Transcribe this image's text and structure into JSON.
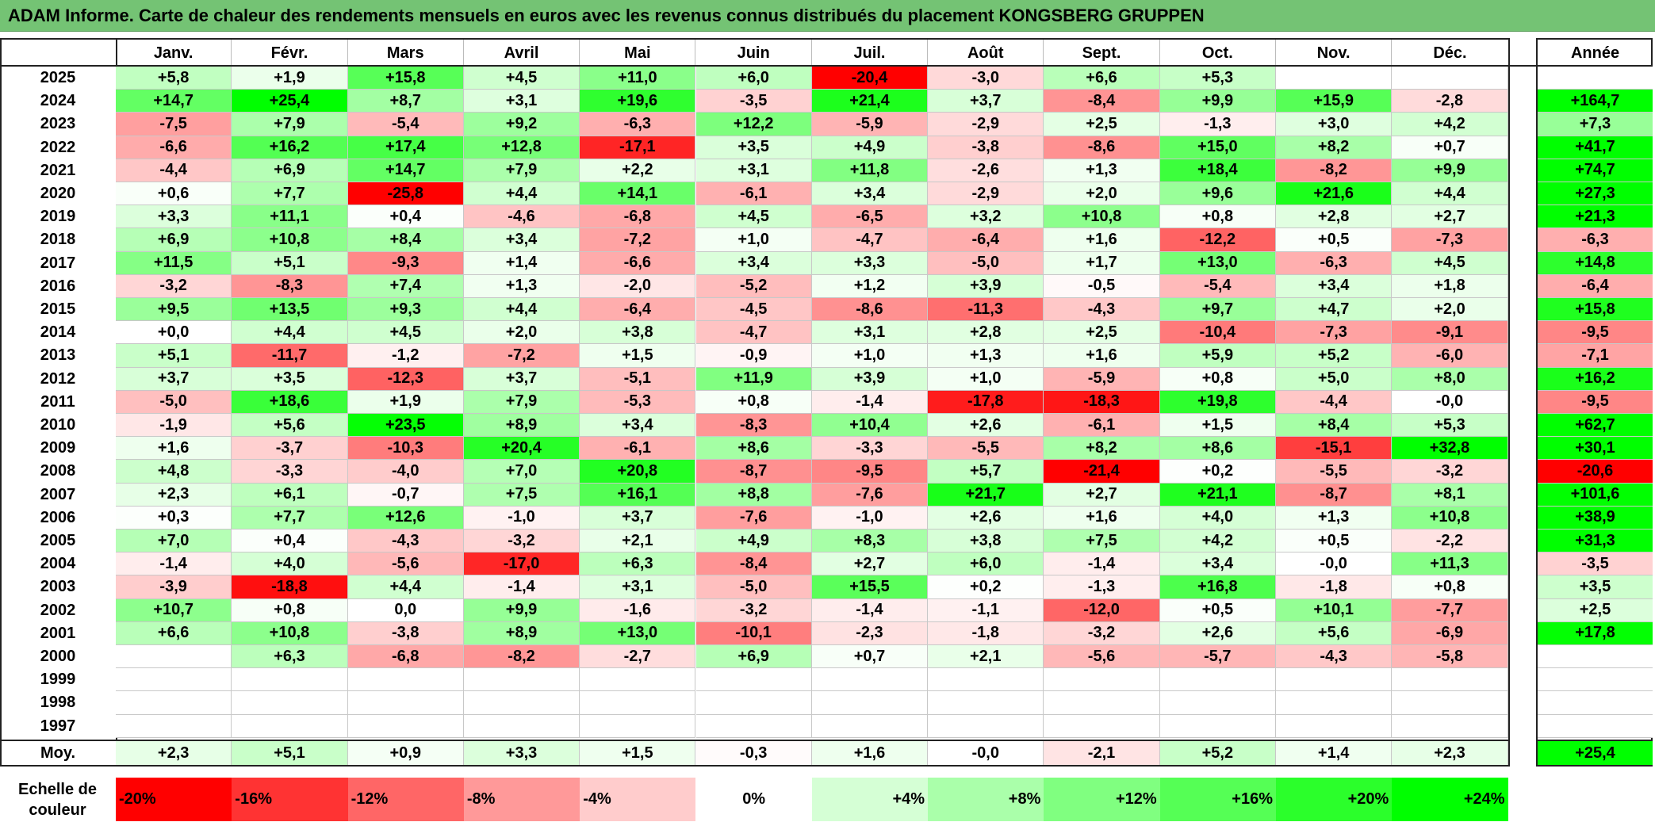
{
  "title": "ADAM Informe. Carte de chaleur des rendements mensuels en euros avec les revenus connus distribués du placement KONGSBERG GRUPPEN",
  "chart_data": {
    "type": "heatmap",
    "columns": [
      "Janv.",
      "Févr.",
      "Mars",
      "Avril",
      "Mai",
      "Juin",
      "Juil.",
      "Août",
      "Sept.",
      "Oct.",
      "Nov.",
      "Déc."
    ],
    "annual_header": "Année",
    "rows": [
      {
        "year": "2025",
        "values": [
          "+5,8",
          "+1,9",
          "+15,8",
          "+4,5",
          "+11,0",
          "+6,0",
          "-20,4",
          "-3,0",
          "+6,6",
          "+5,3",
          "",
          ""
        ],
        "annual": ""
      },
      {
        "year": "2024",
        "values": [
          "+14,7",
          "+25,4",
          "+8,7",
          "+3,1",
          "+19,6",
          "-3,5",
          "+21,4",
          "+3,7",
          "-8,4",
          "+9,9",
          "+15,9",
          "-2,8"
        ],
        "annual": "+164,7"
      },
      {
        "year": "2023",
        "values": [
          "-7,5",
          "+7,9",
          "-5,4",
          "+9,2",
          "-6,3",
          "+12,2",
          "-5,9",
          "-2,9",
          "+2,5",
          "-1,3",
          "+3,0",
          "+4,2"
        ],
        "annual": "+7,3"
      },
      {
        "year": "2022",
        "values": [
          "-6,6",
          "+16,2",
          "+17,4",
          "+12,8",
          "-17,1",
          "+3,5",
          "+4,9",
          "-3,8",
          "-8,6",
          "+15,0",
          "+8,2",
          "+0,7"
        ],
        "annual": "+41,7"
      },
      {
        "year": "2021",
        "values": [
          "-4,4",
          "+6,9",
          "+14,7",
          "+7,9",
          "+2,2",
          "+3,1",
          "+11,8",
          "-2,6",
          "+1,3",
          "+18,4",
          "-8,2",
          "+9,9"
        ],
        "annual": "+74,7"
      },
      {
        "year": "2020",
        "values": [
          "+0,6",
          "+7,7",
          "-25,8",
          "+4,4",
          "+14,1",
          "-6,1",
          "+3,4",
          "-2,9",
          "+2,0",
          "+9,6",
          "+21,6",
          "+4,4"
        ],
        "annual": "+27,3"
      },
      {
        "year": "2019",
        "values": [
          "+3,3",
          "+11,1",
          "+0,4",
          "-4,6",
          "-6,8",
          "+4,5",
          "-6,5",
          "+3,2",
          "+10,8",
          "+0,8",
          "+2,8",
          "+2,7"
        ],
        "annual": "+21,3"
      },
      {
        "year": "2018",
        "values": [
          "+6,9",
          "+10,8",
          "+8,4",
          "+3,4",
          "-7,2",
          "+1,0",
          "-4,7",
          "-6,4",
          "+1,6",
          "-12,2",
          "+0,5",
          "-7,3"
        ],
        "annual": "-6,3"
      },
      {
        "year": "2017",
        "values": [
          "+11,5",
          "+5,1",
          "-9,3",
          "+1,4",
          "-6,6",
          "+3,4",
          "+3,3",
          "-5,0",
          "+1,7",
          "+13,0",
          "-6,3",
          "+4,5"
        ],
        "annual": "+14,8"
      },
      {
        "year": "2016",
        "values": [
          "-3,2",
          "-8,3",
          "+7,4",
          "+1,3",
          "-2,0",
          "-5,2",
          "+1,2",
          "+3,9",
          "-0,5",
          "-5,4",
          "+3,4",
          "+1,8"
        ],
        "annual": "-6,4"
      },
      {
        "year": "2015",
        "values": [
          "+9,5",
          "+13,5",
          "+9,3",
          "+4,4",
          "-6,4",
          "-4,5",
          "-8,6",
          "-11,3",
          "-4,3",
          "+9,7",
          "+4,7",
          "+2,0"
        ],
        "annual": "+15,8"
      },
      {
        "year": "2014",
        "values": [
          "+0,0",
          "+4,4",
          "+4,5",
          "+2,0",
          "+3,8",
          "-4,7",
          "+3,1",
          "+2,8",
          "+2,5",
          "-10,4",
          "-7,3",
          "-9,1"
        ],
        "annual": "-9,5"
      },
      {
        "year": "2013",
        "values": [
          "+5,1",
          "-11,7",
          "-1,2",
          "-7,2",
          "+1,5",
          "-0,9",
          "+1,0",
          "+1,3",
          "+1,6",
          "+5,9",
          "+5,2",
          "-6,0"
        ],
        "annual": "-7,1"
      },
      {
        "year": "2012",
        "values": [
          "+3,7",
          "+3,5",
          "-12,3",
          "+3,7",
          "-5,1",
          "+11,9",
          "+3,9",
          "+1,0",
          "-5,9",
          "+0,8",
          "+5,0",
          "+8,0"
        ],
        "annual": "+16,2"
      },
      {
        "year": "2011",
        "values": [
          "-5,0",
          "+18,6",
          "+1,9",
          "+7,9",
          "-5,3",
          "+0,8",
          "-1,4",
          "-17,8",
          "-18,3",
          "+19,8",
          "-4,4",
          "-0,0"
        ],
        "annual": "-9,5"
      },
      {
        "year": "2010",
        "values": [
          "-1,9",
          "+5,6",
          "+23,5",
          "+8,9",
          "+3,4",
          "-8,3",
          "+10,4",
          "+2,6",
          "-6,1",
          "+1,5",
          "+8,4",
          "+5,3"
        ],
        "annual": "+62,7"
      },
      {
        "year": "2009",
        "values": [
          "+1,6",
          "-3,7",
          "-10,3",
          "+20,4",
          "-6,1",
          "+8,6",
          "-3,3",
          "-5,5",
          "+8,2",
          "+8,6",
          "-15,1",
          "+32,8"
        ],
        "annual": "+30,1"
      },
      {
        "year": "2008",
        "values": [
          "+4,8",
          "-3,3",
          "-4,0",
          "+7,0",
          "+20,8",
          "-8,7",
          "-9,5",
          "+5,7",
          "-21,4",
          "+0,2",
          "-5,5",
          "-3,2"
        ],
        "annual": "-20,6"
      },
      {
        "year": "2007",
        "values": [
          "+2,3",
          "+6,1",
          "-0,7",
          "+7,5",
          "+16,1",
          "+8,8",
          "-7,6",
          "+21,7",
          "+2,7",
          "+21,1",
          "-8,7",
          "+8,1"
        ],
        "annual": "+101,6"
      },
      {
        "year": "2006",
        "values": [
          "+0,3",
          "+7,7",
          "+12,6",
          "-1,0",
          "+3,7",
          "-7,6",
          "-1,0",
          "+2,6",
          "+1,6",
          "+4,0",
          "+1,3",
          "+10,8"
        ],
        "annual": "+38,9"
      },
      {
        "year": "2005",
        "values": [
          "+7,0",
          "+0,4",
          "-4,3",
          "-3,2",
          "+2,1",
          "+4,9",
          "+8,3",
          "+3,8",
          "+7,5",
          "+4,2",
          "+0,5",
          "-2,2"
        ],
        "annual": "+31,3"
      },
      {
        "year": "2004",
        "values": [
          "-1,4",
          "+4,0",
          "-5,6",
          "-17,0",
          "+6,3",
          "-8,4",
          "+2,7",
          "+6,0",
          "-1,4",
          "+3,4",
          "-0,0",
          "+11,3"
        ],
        "annual": "-3,5"
      },
      {
        "year": "2003",
        "values": [
          "-3,9",
          "-18,8",
          "+4,4",
          "-1,4",
          "+3,1",
          "-5,0",
          "+15,5",
          "+0,2",
          "-1,3",
          "+16,8",
          "-1,8",
          "+0,8"
        ],
        "annual": "+3,5"
      },
      {
        "year": "2002",
        "values": [
          "+10,7",
          "+0,8",
          "0,0",
          "+9,9",
          "-1,6",
          "-3,2",
          "-1,4",
          "-1,1",
          "-12,0",
          "+0,5",
          "+10,1",
          "-7,7"
        ],
        "annual": "+2,5"
      },
      {
        "year": "2001",
        "values": [
          "+6,6",
          "+10,8",
          "-3,8",
          "+8,9",
          "+13,0",
          "-10,1",
          "-2,3",
          "-1,8",
          "-3,2",
          "+2,6",
          "+5,6",
          "-6,9"
        ],
        "annual": "+17,8"
      },
      {
        "year": "2000",
        "values": [
          "",
          "+6,3",
          "-6,8",
          "-8,2",
          "-2,7",
          "+6,9",
          "+0,7",
          "+2,1",
          "-5,6",
          "-5,7",
          "-4,3",
          "-5,8"
        ],
        "annual": ""
      },
      {
        "year": "1999",
        "values": [
          "",
          "",
          "",
          "",
          "",
          "",
          "",
          "",
          "",
          "",
          "",
          ""
        ],
        "annual": ""
      },
      {
        "year": "1998",
        "values": [
          "",
          "",
          "",
          "",
          "",
          "",
          "",
          "",
          "",
          "",
          "",
          ""
        ],
        "annual": ""
      },
      {
        "year": "1997",
        "values": [
          "",
          "",
          "",
          "",
          "",
          "",
          "",
          "",
          "",
          "",
          "",
          ""
        ],
        "annual": ""
      }
    ],
    "average": {
      "label": "Moy.",
      "values": [
        "+2,3",
        "+5,1",
        "+0,9",
        "+3,3",
        "+1,5",
        "-0,3",
        "+1,6",
        "-0,0",
        "-2,1",
        "+5,2",
        "+1,4",
        "+2,3"
      ],
      "annual": "+25,4"
    },
    "color_scale": {
      "label_line1": "Echelle de",
      "label_line2": "couleur",
      "stops": [
        "-20%",
        "-16%",
        "-12%",
        "-8%",
        "-4%",
        "0%",
        "+4%",
        "+8%",
        "+12%",
        "+16%",
        "+20%",
        "+24%"
      ],
      "stop_values": [
        -20,
        -16,
        -12,
        -8,
        -4,
        0,
        4,
        8,
        12,
        16,
        20,
        24
      ],
      "negative_color": "#ff0000",
      "positive_color": "#00ff00",
      "neutral_color": "#ffffff"
    }
  }
}
